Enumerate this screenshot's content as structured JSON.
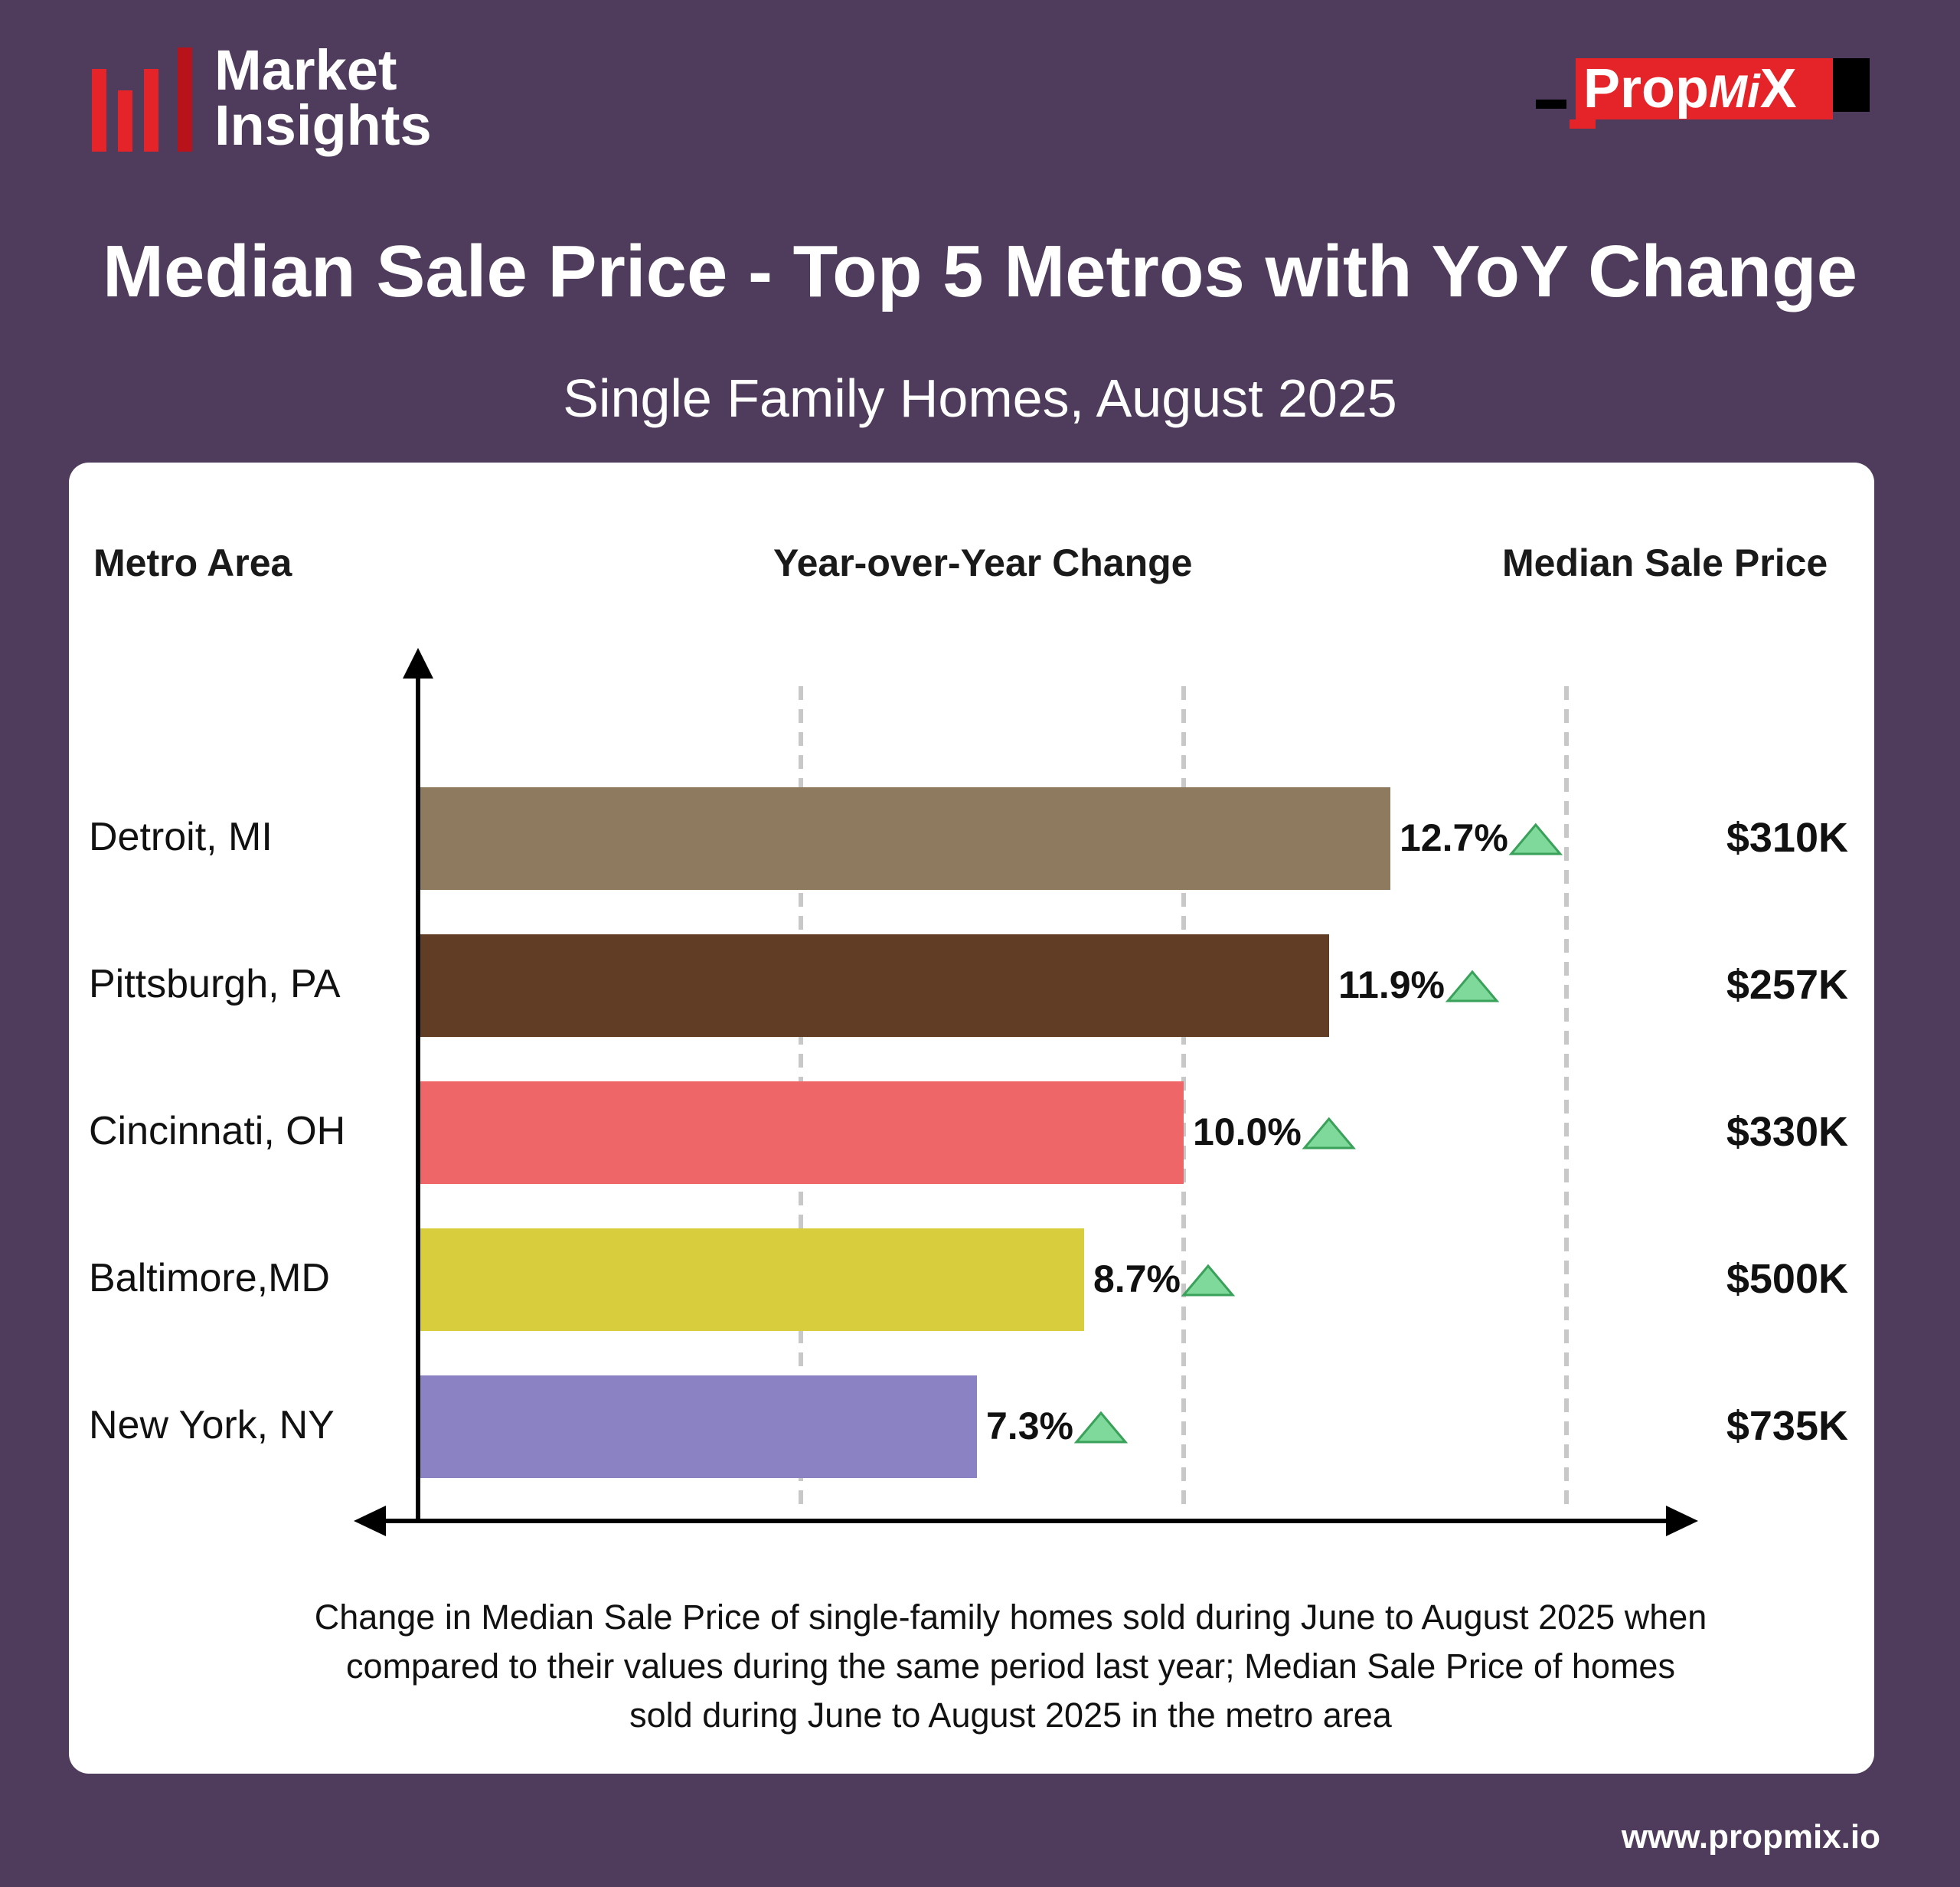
{
  "brand": {
    "line1": "Market",
    "line2": "Insights",
    "bar_colors": [
      "#e52429",
      "#e52429",
      "#e52429",
      "#b8121a"
    ]
  },
  "logo": {
    "text_main": "Prop",
    "text_mi": "Mi",
    "text_x": "X"
  },
  "title": "Median Sale Price - Top 5 Metros with YoY Change",
  "subtitle": "Single Family Homes, August 2025",
  "columns": {
    "metro": "Metro Area",
    "yoy": "Year-over-Year Change",
    "price": "Median Sale Price"
  },
  "chart_data": {
    "type": "bar",
    "orientation": "horizontal",
    "categories": [
      "Detroit, MI",
      "Pittsburgh, PA",
      "Cincinnati, OH",
      "Baltimore,MD",
      "New York, NY"
    ],
    "values": [
      12.7,
      11.9,
      10.0,
      8.7,
      7.3
    ],
    "value_labels": [
      "12.7%",
      "11.9%",
      "10.0%",
      "8.7%",
      "7.3%"
    ],
    "median_sale_price": [
      "$310K",
      "$257K",
      "$330K",
      "$500K",
      "$735K"
    ],
    "bar_colors": [
      "#8e7b5f",
      "#623d25",
      "#ef6668",
      "#d8ce3d",
      "#8b82c4"
    ],
    "trend_marker_color": "#7fd99a",
    "trend": "up",
    "xlim": [
      0,
      15
    ],
    "gridlines_at": [
      5,
      10,
      15
    ],
    "grid": "dashed vertical"
  },
  "footnote": {
    "line1": "Change in Median Sale Price of single-family homes sold during June to August 2025 when",
    "line2": "compared to their values during the same period last year; Median Sale Price of homes",
    "line3": "sold during June to August 2025 in the metro area"
  },
  "url": "www.propmix.io"
}
